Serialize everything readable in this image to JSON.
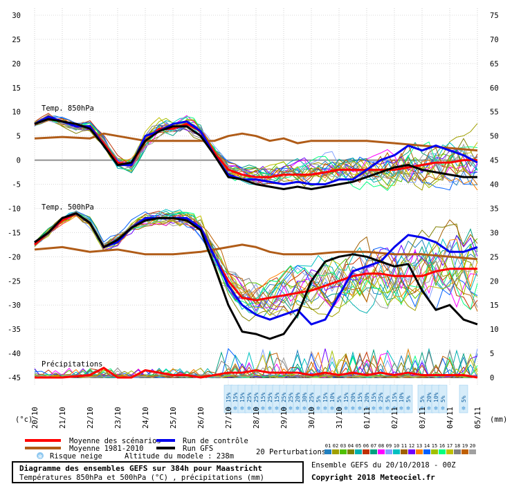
{
  "chart_data": {
    "type": "line",
    "title": "Diagramme des ensembles GEFS sur 384h pour Maastricht",
    "subtitle": "Températures 850hPa et 500hPa (°C) , précipitations (mm)",
    "left_axis": {
      "label": "(°c)",
      "ylim": [
        -45,
        30
      ],
      "ticks": [
        30,
        25,
        20,
        15,
        10,
        5,
        0,
        -5,
        -10,
        -15,
        -20,
        -25,
        -30,
        -35,
        -40,
        -45
      ]
    },
    "right_axis": {
      "label": "(mm)",
      "ylim": [
        0,
        75
      ],
      "ticks": [
        75,
        70,
        65,
        60,
        55,
        50,
        45,
        40,
        35,
        30,
        25,
        20,
        15,
        10,
        5,
        0
      ]
    },
    "x_dates": [
      "20/10",
      "21/10",
      "22/10",
      "23/10",
      "24/10",
      "25/10",
      "26/10",
      "27/10",
      "28/10",
      "29/10",
      "30/10",
      "31/10",
      "01/11",
      "02/11",
      "03/11",
      "04/11",
      "05/11"
    ],
    "x_range_days": [
      0,
      16
    ],
    "grid": true,
    "panel_labels": [
      "Temp. 850hPa",
      "Temp. 500hPa",
      "Précipitations"
    ],
    "snow_risk": {
      "days": [
        7.0,
        7.25,
        7.5,
        7.75,
        8.0,
        8.25,
        8.5,
        8.75,
        9.0,
        9.25,
        9.5,
        9.75,
        10.0,
        10.25,
        10.5,
        10.75,
        11.0,
        11.25,
        11.5,
        11.75,
        12.0,
        12.25,
        12.5,
        12.75,
        13.0,
        13.25,
        13.5,
        14.0,
        14.25,
        14.5,
        14.75,
        15.5
      ],
      "labels": [
        "15%",
        "15%",
        "15%",
        "25%",
        "25%",
        "15%",
        "25%",
        "15%",
        "25%",
        "25%",
        "20%",
        "30%",
        "25%",
        "5%",
        "15%",
        "10%",
        "5%",
        "15%",
        "20%",
        "15%",
        "20%",
        "15%",
        "25%",
        "5%",
        "15%",
        "10%",
        "5%",
        "5%",
        "20%",
        "10%",
        "5%",
        "5%"
      ]
    },
    "series": [
      {
        "name": "Moyenne des scénarios",
        "color": "#ff0000",
        "width": 3,
        "t850": [
          [
            0,
            7.5
          ],
          [
            0.5,
            9
          ],
          [
            1,
            8
          ],
          [
            1.5,
            7
          ],
          [
            2,
            7
          ],
          [
            2.5,
            3.5
          ],
          [
            3,
            -0.5
          ],
          [
            3.5,
            -1
          ],
          [
            4,
            4
          ],
          [
            4.5,
            6.5
          ],
          [
            5,
            6.5
          ],
          [
            5.5,
            7.5
          ],
          [
            6,
            6
          ],
          [
            6.5,
            1.5
          ],
          [
            7,
            -2
          ],
          [
            7.5,
            -3
          ],
          [
            8,
            -3.5
          ],
          [
            8.5,
            -3.5
          ],
          [
            9,
            -3
          ],
          [
            9.5,
            -3
          ],
          [
            10,
            -3
          ],
          [
            10.5,
            -2.5
          ],
          [
            11,
            -2
          ],
          [
            11.5,
            -2
          ],
          [
            12,
            -2
          ],
          [
            12.5,
            -2
          ],
          [
            13,
            -2
          ],
          [
            13.5,
            -1.5
          ],
          [
            14,
            -1
          ],
          [
            14.5,
            -0.5
          ],
          [
            15,
            -0.5
          ],
          [
            15.5,
            0
          ],
          [
            16,
            0
          ]
        ],
        "t500": [
          [
            0,
            -17.5
          ],
          [
            0.5,
            -15
          ],
          [
            1,
            -12.5
          ],
          [
            1.5,
            -11
          ],
          [
            2,
            -13
          ],
          [
            2.5,
            -18
          ],
          [
            3,
            -16.5
          ],
          [
            3.5,
            -14
          ],
          [
            4,
            -12.5
          ],
          [
            4.5,
            -12
          ],
          [
            5,
            -12
          ],
          [
            5.5,
            -12.5
          ],
          [
            6,
            -14
          ],
          [
            6.5,
            -20
          ],
          [
            7,
            -25
          ],
          [
            7.5,
            -28.5
          ],
          [
            8,
            -29
          ],
          [
            8.5,
            -28.5
          ],
          [
            9,
            -28
          ],
          [
            9.5,
            -27.5
          ],
          [
            10,
            -27
          ],
          [
            10.5,
            -26
          ],
          [
            11,
            -25
          ],
          [
            11.5,
            -24
          ],
          [
            12,
            -23.5
          ],
          [
            12.5,
            -23.5
          ],
          [
            13,
            -24
          ],
          [
            13.5,
            -24
          ],
          [
            14,
            -24
          ],
          [
            14.5,
            -23
          ],
          [
            15,
            -22.5
          ],
          [
            15.5,
            -22.5
          ],
          [
            16,
            -22.5
          ]
        ],
        "precip": [
          [
            0,
            0
          ],
          [
            1,
            0
          ],
          [
            2,
            0.5
          ],
          [
            2.5,
            2
          ],
          [
            3,
            0
          ],
          [
            3.5,
            0
          ],
          [
            4,
            1.5
          ],
          [
            4.5,
            1
          ],
          [
            5,
            0.5
          ],
          [
            5.5,
            0.5
          ],
          [
            6,
            0
          ],
          [
            6.5,
            0.5
          ],
          [
            7,
            1
          ],
          [
            7.5,
            1
          ],
          [
            8,
            1.5
          ],
          [
            8.5,
            1
          ],
          [
            9,
            1
          ],
          [
            9.5,
            1
          ],
          [
            10,
            0.5
          ],
          [
            10.5,
            1
          ],
          [
            11,
            0.5
          ],
          [
            11.5,
            1
          ],
          [
            12,
            0.5
          ],
          [
            12.5,
            1
          ],
          [
            13,
            0.5
          ],
          [
            13.5,
            1
          ],
          [
            14,
            0.5
          ],
          [
            14.5,
            0.5
          ],
          [
            15,
            0.5
          ],
          [
            15.5,
            0.5
          ],
          [
            16,
            0
          ]
        ]
      },
      {
        "name": "Moyenne 1981-2010",
        "color": "#b05c18",
        "width": 3,
        "t850": [
          [
            0,
            4.5
          ],
          [
            1,
            4.8
          ],
          [
            2,
            4.5
          ],
          [
            2.5,
            5.5
          ],
          [
            3,
            5
          ],
          [
            4,
            4
          ],
          [
            5,
            4
          ],
          [
            6,
            4
          ],
          [
            6.5,
            4
          ],
          [
            7,
            5
          ],
          [
            7.5,
            5.5
          ],
          [
            8,
            5
          ],
          [
            8.5,
            4
          ],
          [
            9,
            4.5
          ],
          [
            9.5,
            3.5
          ],
          [
            10,
            4
          ],
          [
            11,
            4
          ],
          [
            12,
            4
          ],
          [
            13,
            3.5
          ],
          [
            14,
            3
          ],
          [
            15,
            2.5
          ],
          [
            16,
            2
          ]
        ],
        "t500": [
          [
            0,
            -18.5
          ],
          [
            1,
            -18
          ],
          [
            2,
            -19
          ],
          [
            3,
            -18.5
          ],
          [
            3.5,
            -19
          ],
          [
            4,
            -19.5
          ],
          [
            5,
            -19.5
          ],
          [
            6,
            -19
          ],
          [
            6.5,
            -18.5
          ],
          [
            7,
            -18
          ],
          [
            7.5,
            -17.5
          ],
          [
            8,
            -18
          ],
          [
            8.5,
            -19
          ],
          [
            9,
            -19.5
          ],
          [
            10,
            -19.5
          ],
          [
            11,
            -19
          ],
          [
            12,
            -19
          ],
          [
            13,
            -19.5
          ],
          [
            14,
            -19.5
          ],
          [
            15,
            -20
          ],
          [
            16,
            -20.5
          ]
        ]
      },
      {
        "name": "Run de contrôle",
        "color": "#0000ee",
        "width": 3,
        "t850": [
          [
            0,
            7.5
          ],
          [
            0.5,
            9
          ],
          [
            1,
            8
          ],
          [
            1.5,
            7
          ],
          [
            2,
            7
          ],
          [
            2.5,
            3
          ],
          [
            3,
            -1
          ],
          [
            3.5,
            -1
          ],
          [
            4,
            5
          ],
          [
            4.5,
            6
          ],
          [
            5,
            7.5
          ],
          [
            5.5,
            8
          ],
          [
            6,
            6
          ],
          [
            6.5,
            1
          ],
          [
            7,
            -3
          ],
          [
            7.5,
            -4
          ],
          [
            8,
            -4
          ],
          [
            8.5,
            -4.5
          ],
          [
            9,
            -5
          ],
          [
            9.5,
            -4.5
          ],
          [
            10,
            -5
          ],
          [
            10.5,
            -5
          ],
          [
            11,
            -4
          ],
          [
            11.5,
            -4
          ],
          [
            12,
            -2
          ],
          [
            12.5,
            0
          ],
          [
            13,
            1
          ],
          [
            13.5,
            3
          ],
          [
            14,
            2
          ],
          [
            14.5,
            3
          ],
          [
            15,
            2
          ],
          [
            15.5,
            1
          ],
          [
            16,
            -0.5
          ]
        ],
        "t500": [
          [
            0,
            -17
          ],
          [
            0.5,
            -15
          ],
          [
            1,
            -12
          ],
          [
            1.5,
            -11
          ],
          [
            2,
            -13
          ],
          [
            2.5,
            -18
          ],
          [
            3,
            -17
          ],
          [
            3.5,
            -14
          ],
          [
            4,
            -12
          ],
          [
            4.5,
            -12
          ],
          [
            5,
            -12
          ],
          [
            5.5,
            -12
          ],
          [
            6,
            -14
          ],
          [
            6.5,
            -20
          ],
          [
            7,
            -26
          ],
          [
            7.5,
            -30
          ],
          [
            8,
            -32
          ],
          [
            8.5,
            -33
          ],
          [
            9,
            -32
          ],
          [
            9.5,
            -31
          ],
          [
            10,
            -34
          ],
          [
            10.5,
            -33
          ],
          [
            11,
            -28
          ],
          [
            11.5,
            -23
          ],
          [
            12,
            -22
          ],
          [
            12.5,
            -21
          ],
          [
            13,
            -18
          ],
          [
            13.5,
            -15.5
          ],
          [
            14,
            -16
          ],
          [
            14.5,
            -17
          ],
          [
            15,
            -19
          ],
          [
            15.5,
            -19
          ],
          [
            16,
            -18
          ]
        ]
      },
      {
        "name": "Run GFS",
        "color": "#000000",
        "width": 3,
        "t850": [
          [
            0,
            7.5
          ],
          [
            0.5,
            8.5
          ],
          [
            1,
            8
          ],
          [
            1.5,
            7.5
          ],
          [
            2,
            6.5
          ],
          [
            2.5,
            3
          ],
          [
            3,
            -1
          ],
          [
            3.5,
            -0.5
          ],
          [
            4,
            4
          ],
          [
            4.5,
            6
          ],
          [
            5,
            7
          ],
          [
            5.5,
            7
          ],
          [
            6,
            5
          ],
          [
            6.5,
            1
          ],
          [
            7,
            -3.5
          ],
          [
            7.5,
            -4
          ],
          [
            8,
            -5
          ],
          [
            8.5,
            -5.5
          ],
          [
            9,
            -6
          ],
          [
            9.5,
            -5.5
          ],
          [
            10,
            -6
          ],
          [
            10.5,
            -5.5
          ],
          [
            11,
            -5
          ],
          [
            11.5,
            -4.5
          ],
          [
            12,
            -3.5
          ],
          [
            12.5,
            -2.5
          ],
          [
            13,
            -1.5
          ],
          [
            13.5,
            -1
          ],
          [
            14,
            -2
          ],
          [
            14.5,
            -2.5
          ],
          [
            15,
            -3
          ],
          [
            15.5,
            -3.5
          ],
          [
            16,
            -3.5
          ]
        ],
        "t500": [
          [
            0,
            -17
          ],
          [
            0.5,
            -15
          ],
          [
            1,
            -12
          ],
          [
            1.5,
            -11
          ],
          [
            2,
            -13
          ],
          [
            2.5,
            -18
          ],
          [
            3,
            -16.5
          ],
          [
            3.5,
            -14
          ],
          [
            4,
            -12.5
          ],
          [
            4.5,
            -12
          ],
          [
            5,
            -12
          ],
          [
            5.5,
            -12.5
          ],
          [
            6,
            -14.5
          ],
          [
            6.5,
            -22
          ],
          [
            7,
            -30
          ],
          [
            7.5,
            -35.5
          ],
          [
            8,
            -36
          ],
          [
            8.5,
            -37
          ],
          [
            9,
            -36
          ],
          [
            9.5,
            -32
          ],
          [
            10,
            -25
          ],
          [
            10.5,
            -21
          ],
          [
            11,
            -20
          ],
          [
            11.5,
            -19.5
          ],
          [
            12,
            -20
          ],
          [
            12.5,
            -21
          ],
          [
            13,
            -22
          ],
          [
            13.5,
            -21.5
          ],
          [
            14,
            -27
          ],
          [
            14.5,
            -31
          ],
          [
            15,
            -30
          ],
          [
            15.5,
            -33
          ],
          [
            16,
            -34
          ]
        ]
      }
    ],
    "perturbations_label": "20 Perturbations",
    "perturbation_ids": [
      "01",
      "02",
      "03",
      "04",
      "05",
      "06",
      "07",
      "08",
      "09",
      "10",
      "11",
      "12",
      "13",
      "14",
      "15",
      "16",
      "17",
      "18",
      "19",
      "20"
    ],
    "perturbation_colors": [
      "#2080c0",
      "#a0a000",
      "#50c000",
      "#808000",
      "#00b0b0",
      "#c03000",
      "#00a080",
      "#ff00ff",
      "#80a0ff",
      "#00c0c0",
      "#a06000",
      "#7000ff",
      "#ff8000",
      "#0060ff",
      "#a0c000",
      "#00ff80",
      "#c0c000",
      "#808080",
      "#c06000",
      "#a0a0a0"
    ]
  },
  "legend": {
    "mean": "Moyenne des scénarios",
    "clim": "Moyenne 1981-2010",
    "snow": "Risque neige",
    "control": "Run de contrôle",
    "gfs": "Run GFS",
    "altitude": "Altitude du modele : 238m"
  },
  "footer": {
    "title": "Diagramme des ensembles GEFS sur 384h pour Maastricht",
    "subtitle": "Températures 850hPa et 500hPa (°C) , précipitations (mm)",
    "ensemble": "Ensemble GEFS du 20/10/2018 - 00Z",
    "copyright": "Copyright 2018 Meteociel.fr"
  }
}
